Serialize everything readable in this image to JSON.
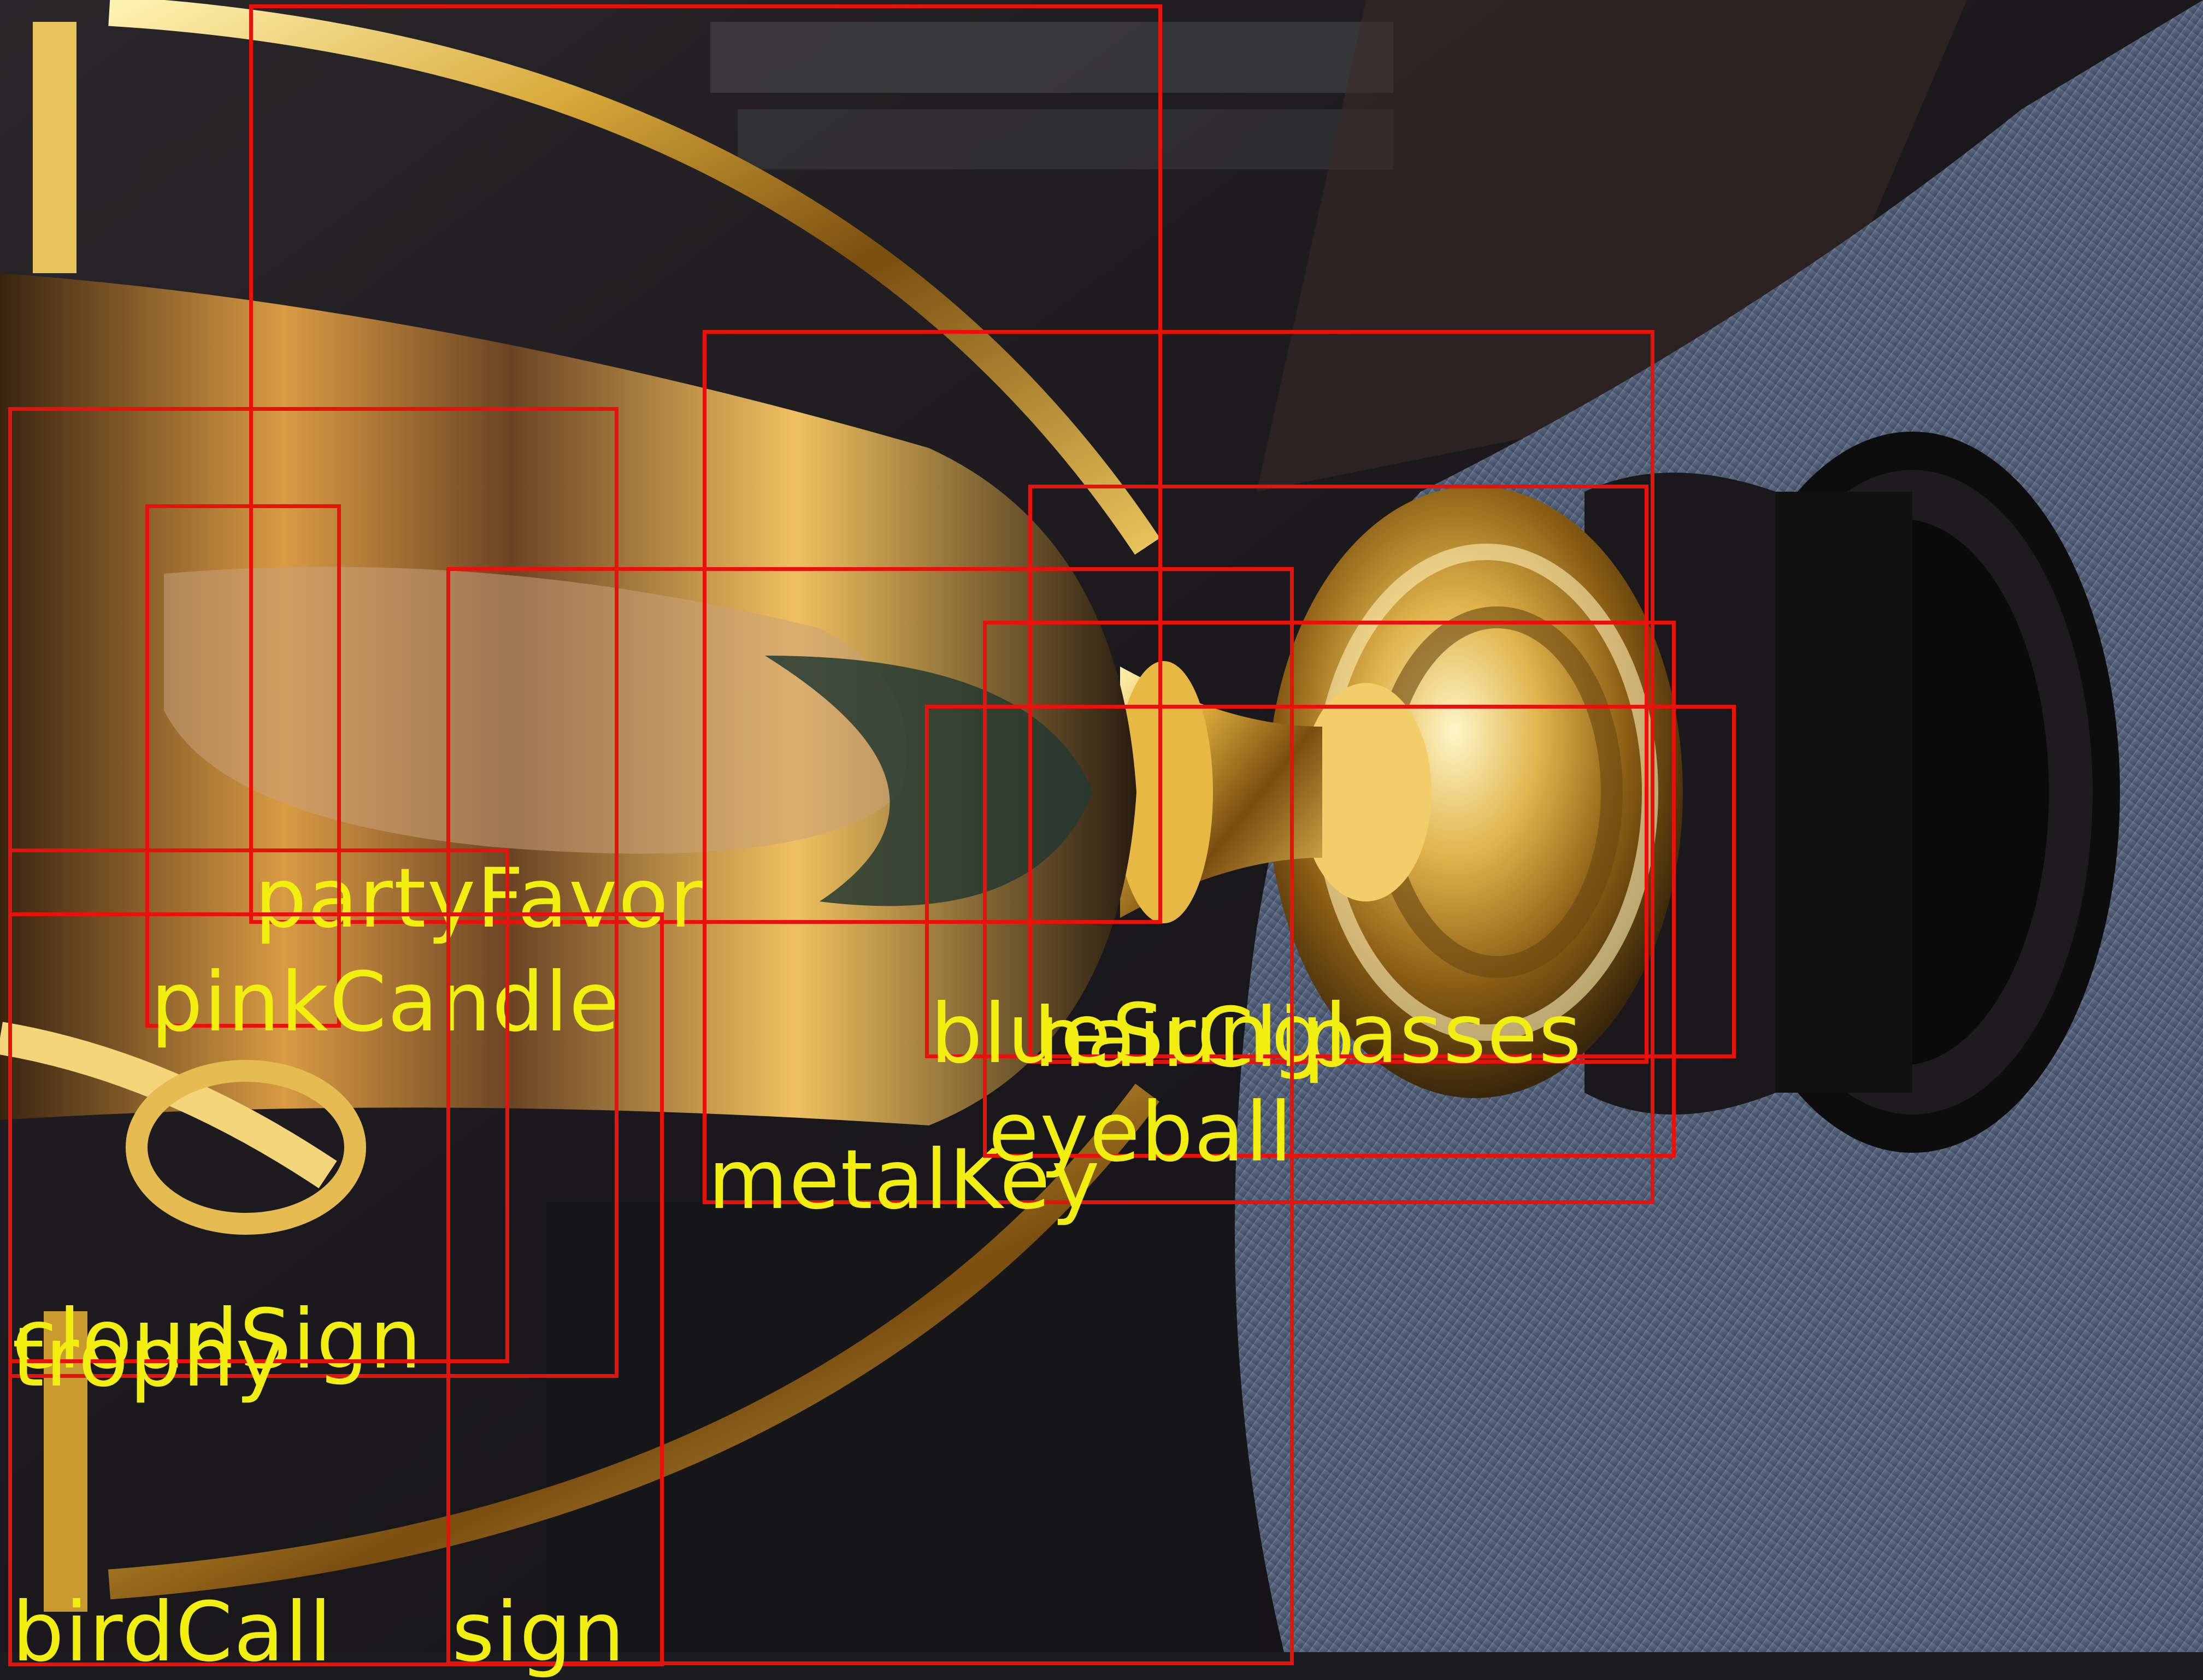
{
  "image": {
    "description_colors": {
      "background_dark": "#1c1b1e",
      "gold": "#d9a93a",
      "gold_highlight": "#fff1b0",
      "denim": "#56657e",
      "base_black": "#121112"
    }
  },
  "detections": {
    "box_color": "#e8120c",
    "label_color": "#f2ee10",
    "items": [
      {
        "label": "partyFavor"
      },
      {
        "label": "pinkCandle"
      },
      {
        "label": "metalKey"
      },
      {
        "label": "hairClip"
      },
      {
        "label": "blueSunglasses"
      },
      {
        "label": "eyeball"
      },
      {
        "label": "cloudSign"
      },
      {
        "label": "trophy"
      },
      {
        "label": "birdCall"
      },
      {
        "label": "sign"
      }
    ]
  }
}
